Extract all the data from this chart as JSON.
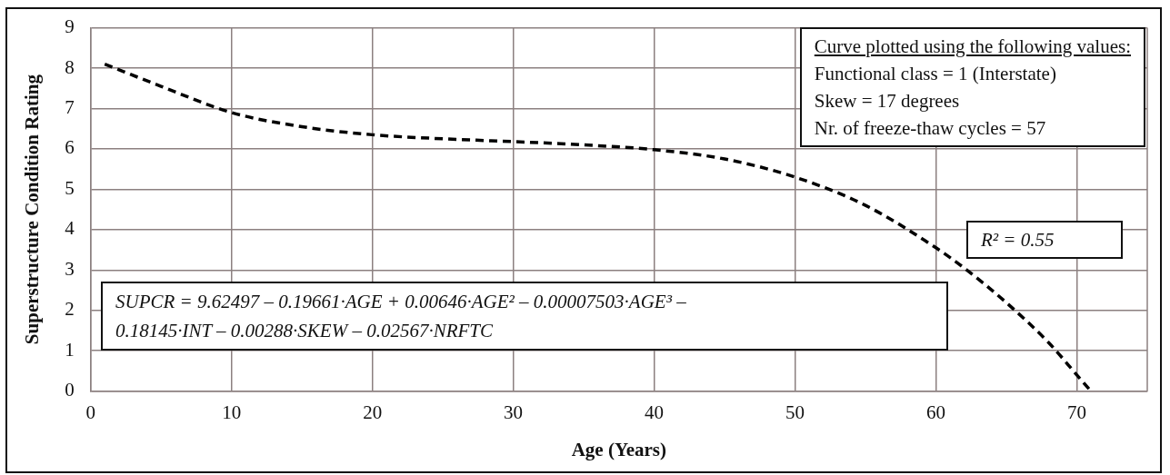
{
  "chart_data": {
    "type": "line",
    "xlabel": "Age (Years)",
    "ylabel": "Superstructure Condition Rating",
    "x": [
      1,
      5,
      10,
      15,
      20,
      25,
      30,
      35,
      40,
      45,
      50,
      55,
      60,
      62,
      65,
      68,
      70,
      71
    ],
    "series": [
      {
        "color": "#000000",
        "line_style": "dashed",
        "values": [
          8.1,
          7.55,
          6.9,
          6.55,
          6.35,
          6.25,
          6.18,
          6.1,
          5.98,
          5.75,
          5.3,
          4.6,
          3.55,
          3.05,
          2.19,
          1.2,
          0.4,
          0
        ]
      }
    ],
    "xlim": [
      0,
      75
    ],
    "xticks": [
      0,
      10,
      20,
      30,
      40,
      50,
      60,
      70
    ],
    "ylim": [
      0,
      9
    ],
    "yticks": [
      0,
      1,
      2,
      3,
      4,
      5,
      6,
      7,
      8,
      9
    ],
    "grid": true,
    "legend": false,
    "marker": "none",
    "annotations": [
      "Curve plotted using the following values:\nFunctional class = 1 (Interstate)\nSkew = 17 degrees\nNr. of freeze-thaw cycles = 57",
      "R² = 0.55",
      "SUPCR = 9.62497 – 0.19661·AGE + 0.00646·AGE² – 0.00007503·AGE³ –\n0.18145·INT – 0.00288·SKEW – 0.02567·NRFTC"
    ]
  }
}
